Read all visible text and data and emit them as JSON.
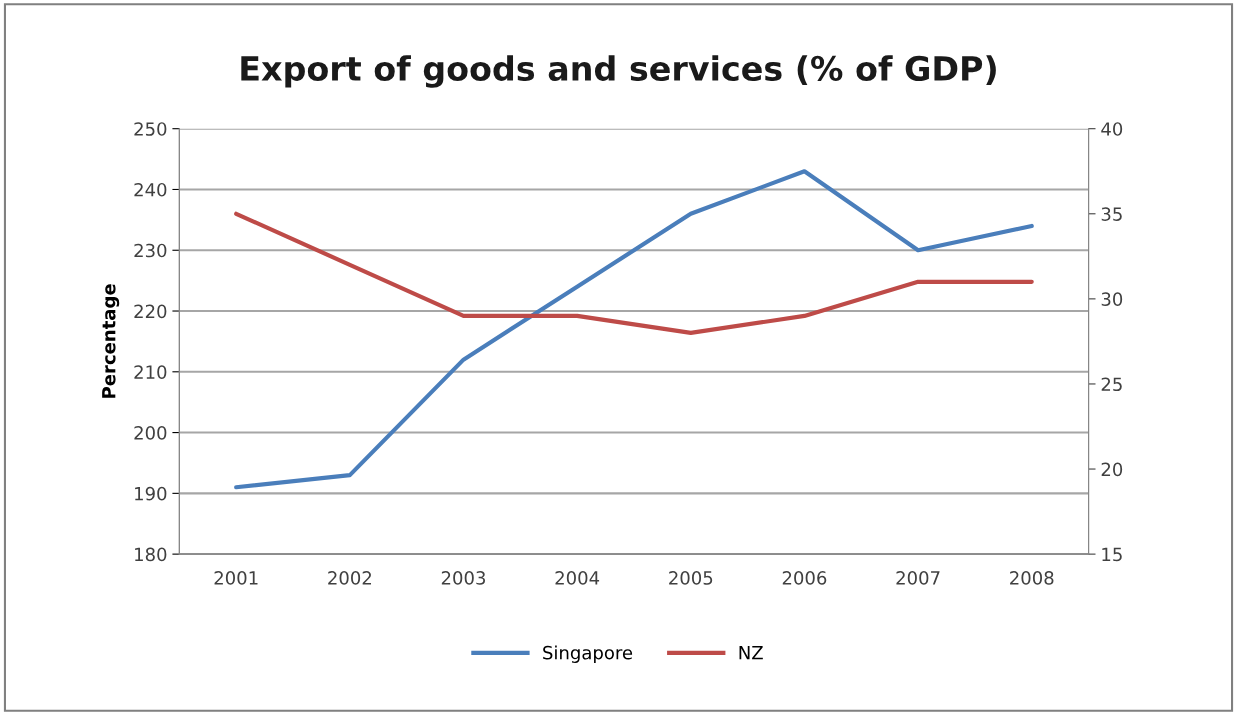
{
  "chart_data": {
    "type": "line",
    "title": "Export of goods and services (% of GDP)",
    "ylabel": "Percentage",
    "categories": [
      "2001",
      "2002",
      "2003",
      "2004",
      "2005",
      "2006",
      "2007",
      "2008"
    ],
    "series": [
      {
        "name": "Singapore",
        "color": "#4a7ebb",
        "values": [
          191,
          193,
          212,
          224,
          236,
          243,
          230,
          234
        ]
      },
      {
        "name": "NZ",
        "color": "#be4b48",
        "axis": "y2",
        "values": [
          35,
          32,
          29,
          29,
          28,
          29,
          31,
          31
        ]
      }
    ],
    "ylim": [
      180,
      250
    ],
    "yticks": [
      180,
      190,
      200,
      210,
      220,
      230,
      240,
      250
    ],
    "y2lim": [
      15,
      40
    ],
    "y2ticks": [
      15,
      20,
      25,
      30,
      35,
      40
    ],
    "grid": "y",
    "legend": "bottom",
    "marker": "none",
    "line_style": "solid"
  }
}
